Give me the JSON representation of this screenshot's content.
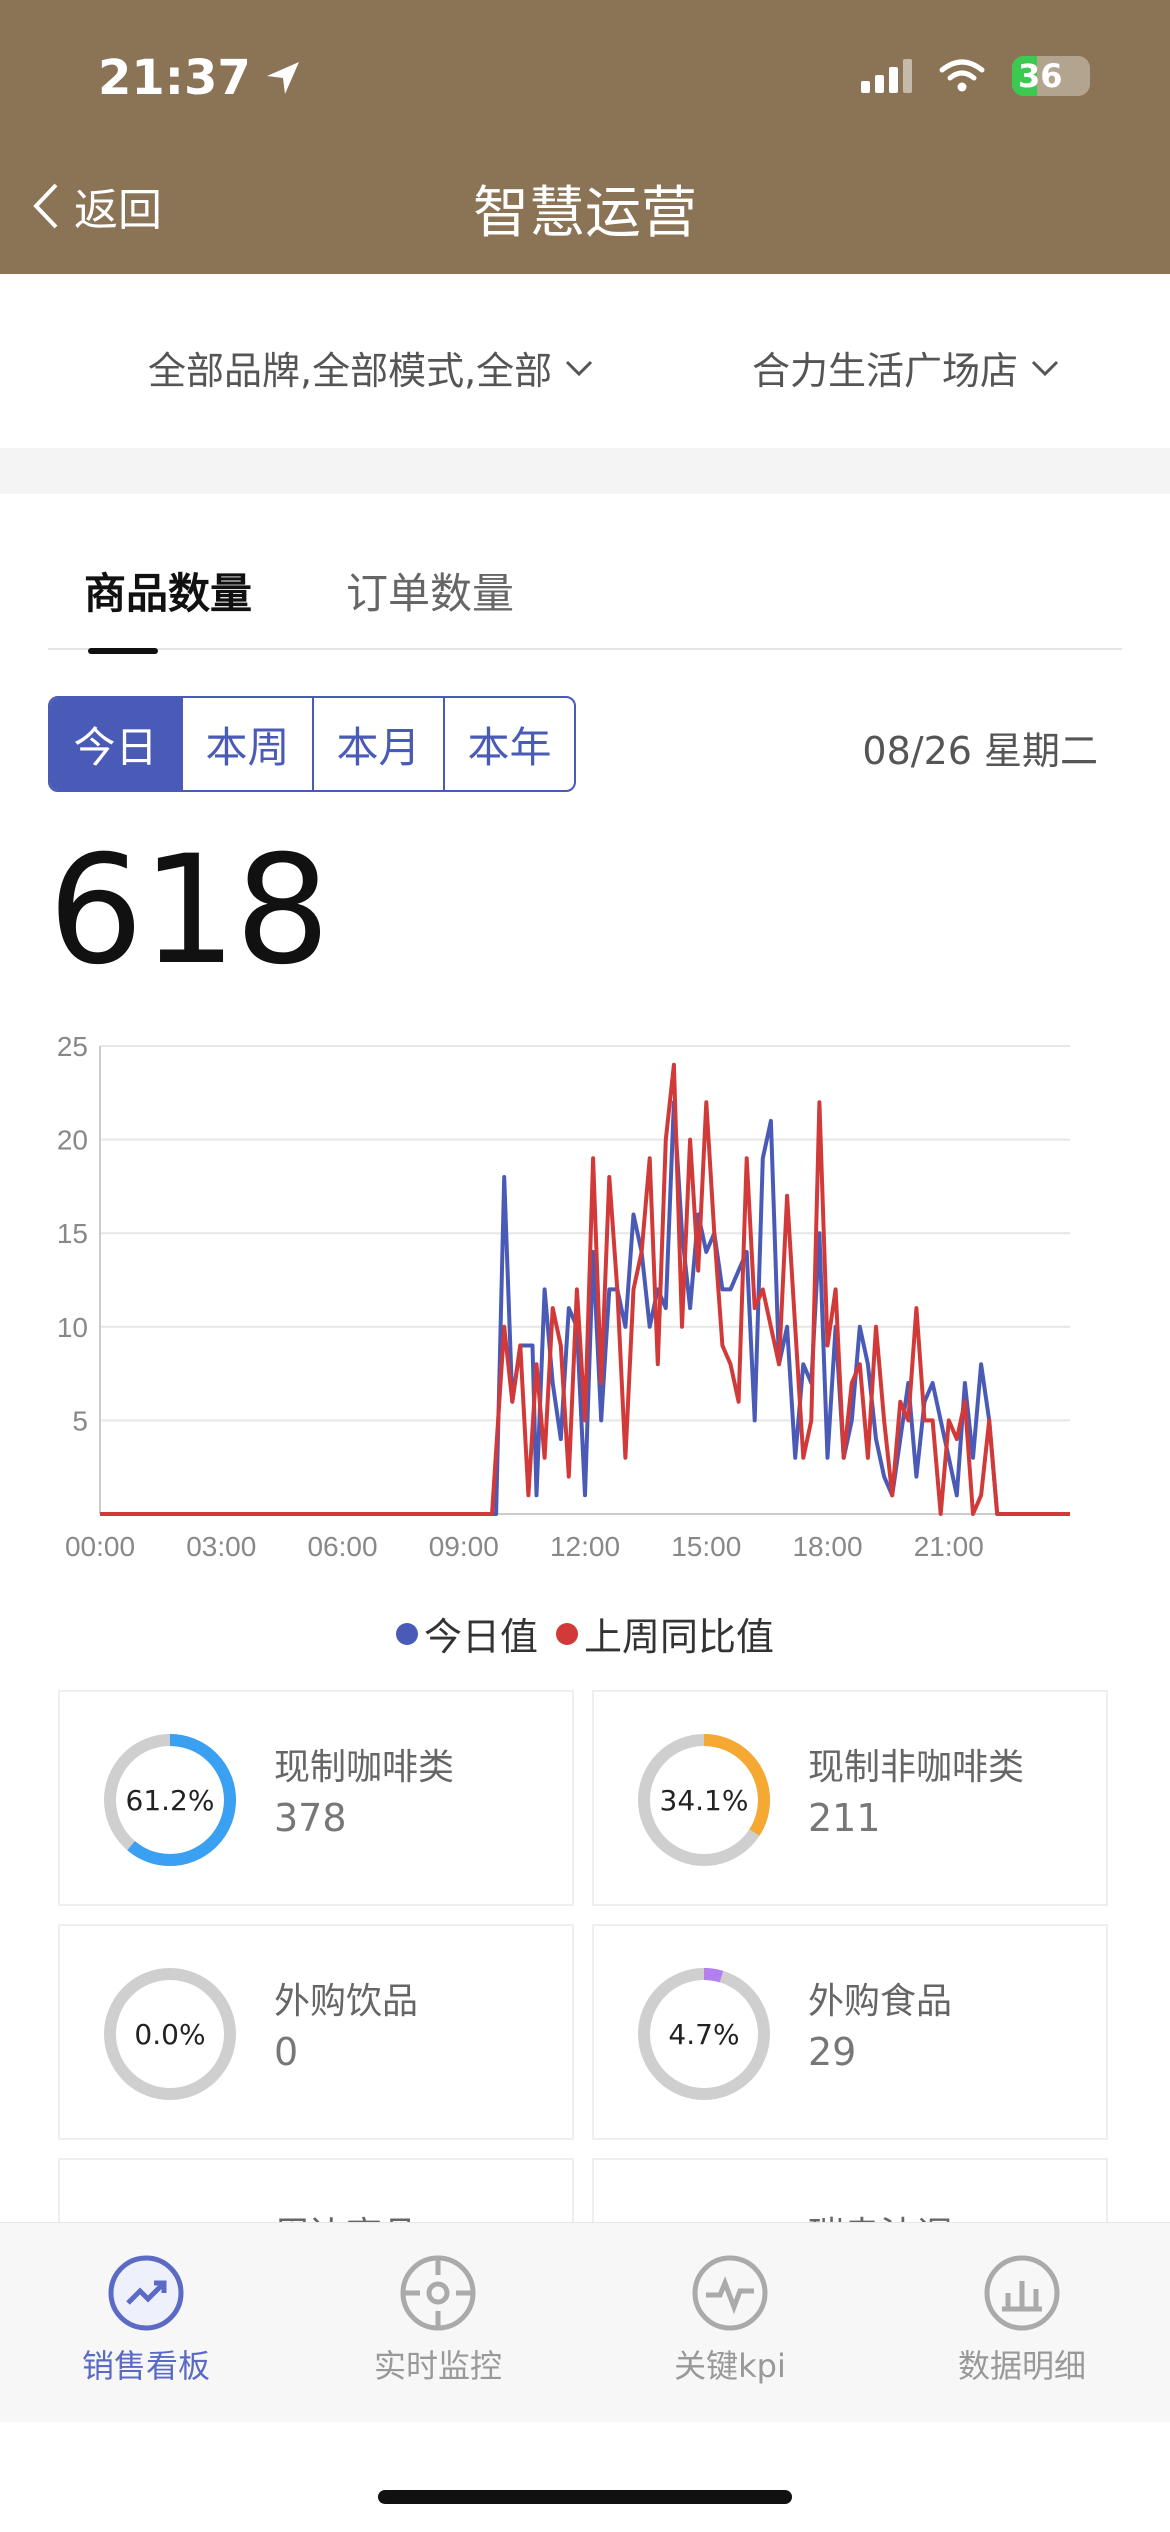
{
  "status": {
    "time": "21:37",
    "battery": "36"
  },
  "nav": {
    "back_label": "返回",
    "title": "智慧运营"
  },
  "filters": {
    "brand": "全部品牌,全部模式,全部",
    "store": "合力生活广场店"
  },
  "tabs": [
    {
      "label": "商品数量",
      "active": true
    },
    {
      "label": "订单数量",
      "active": false
    }
  ],
  "period": {
    "options": [
      "今日",
      "本周",
      "本月",
      "本年"
    ],
    "selected": "今日"
  },
  "date": "08/26 星期二",
  "total": "618",
  "chart_data": {
    "type": "line",
    "y_ticks": [
      5,
      10,
      15,
      20,
      25
    ],
    "ylim": [
      0,
      25
    ],
    "x_ticks": [
      "00:00",
      "03:00",
      "06:00",
      "09:00",
      "12:00",
      "15:00",
      "18:00",
      "21:00"
    ],
    "x_range_hours": [
      0,
      24
    ],
    "series": [
      {
        "name": "今日值",
        "color": "#4a5bb7",
        "points": [
          [
            0,
            0
          ],
          [
            9.8,
            0
          ],
          [
            10.0,
            18
          ],
          [
            10.2,
            6
          ],
          [
            10.4,
            9
          ],
          [
            10.7,
            9
          ],
          [
            10.8,
            1
          ],
          [
            11.0,
            12
          ],
          [
            11.2,
            7
          ],
          [
            11.4,
            4
          ],
          [
            11.6,
            11
          ],
          [
            11.8,
            10
          ],
          [
            12.0,
            1
          ],
          [
            12.2,
            14
          ],
          [
            12.4,
            5
          ],
          [
            12.6,
            12
          ],
          [
            12.8,
            12
          ],
          [
            13.0,
            10
          ],
          [
            13.2,
            16
          ],
          [
            13.4,
            14
          ],
          [
            13.6,
            10
          ],
          [
            13.8,
            12
          ],
          [
            14.0,
            11
          ],
          [
            14.2,
            22
          ],
          [
            14.4,
            15
          ],
          [
            14.6,
            11
          ],
          [
            14.8,
            16
          ],
          [
            15.0,
            14
          ],
          [
            15.2,
            15
          ],
          [
            15.4,
            12
          ],
          [
            15.6,
            12
          ],
          [
            15.8,
            13
          ],
          [
            16.0,
            14
          ],
          [
            16.2,
            5
          ],
          [
            16.4,
            19
          ],
          [
            16.6,
            21
          ],
          [
            16.8,
            8
          ],
          [
            17.0,
            10
          ],
          [
            17.2,
            3
          ],
          [
            17.4,
            8
          ],
          [
            17.6,
            7
          ],
          [
            17.8,
            15
          ],
          [
            18.0,
            3
          ],
          [
            18.2,
            10
          ],
          [
            18.4,
            3
          ],
          [
            18.6,
            5
          ],
          [
            18.8,
            10
          ],
          [
            19.0,
            8
          ],
          [
            19.2,
            4
          ],
          [
            19.4,
            2
          ],
          [
            19.6,
            1
          ],
          [
            19.8,
            4
          ],
          [
            20.0,
            7
          ],
          [
            20.2,
            2
          ],
          [
            20.4,
            6
          ],
          [
            20.6,
            7
          ],
          [
            20.8,
            5
          ],
          [
            21.0,
            3
          ],
          [
            21.2,
            1
          ],
          [
            21.4,
            7
          ],
          [
            21.6,
            3
          ],
          [
            21.8,
            8
          ],
          [
            22.0,
            5
          ],
          [
            22.2,
            0
          ],
          [
            24,
            0
          ]
        ]
      },
      {
        "name": "上周同比值",
        "color": "#d23a3a",
        "points": [
          [
            0,
            0
          ],
          [
            9.7,
            0
          ],
          [
            10.0,
            10
          ],
          [
            10.2,
            6
          ],
          [
            10.4,
            9
          ],
          [
            10.6,
            1
          ],
          [
            10.8,
            8
          ],
          [
            11.0,
            3
          ],
          [
            11.2,
            11
          ],
          [
            11.4,
            9
          ],
          [
            11.6,
            2
          ],
          [
            11.8,
            12
          ],
          [
            12.0,
            5
          ],
          [
            12.2,
            19
          ],
          [
            12.4,
            7
          ],
          [
            12.6,
            18
          ],
          [
            12.8,
            12
          ],
          [
            13.0,
            3
          ],
          [
            13.2,
            12
          ],
          [
            13.4,
            14
          ],
          [
            13.6,
            19
          ],
          [
            13.8,
            8
          ],
          [
            14.0,
            20
          ],
          [
            14.2,
            24
          ],
          [
            14.4,
            10
          ],
          [
            14.6,
            20
          ],
          [
            14.8,
            13
          ],
          [
            15.0,
            22
          ],
          [
            15.2,
            15
          ],
          [
            15.4,
            9
          ],
          [
            15.6,
            8
          ],
          [
            15.8,
            6
          ],
          [
            16.0,
            19
          ],
          [
            16.2,
            11
          ],
          [
            16.4,
            12
          ],
          [
            16.6,
            10
          ],
          [
            16.8,
            8
          ],
          [
            17.0,
            17
          ],
          [
            17.2,
            10
          ],
          [
            17.4,
            3
          ],
          [
            17.6,
            5
          ],
          [
            17.8,
            22
          ],
          [
            18.0,
            9
          ],
          [
            18.2,
            12
          ],
          [
            18.4,
            3
          ],
          [
            18.6,
            7
          ],
          [
            18.8,
            8
          ],
          [
            19.0,
            3
          ],
          [
            19.2,
            10
          ],
          [
            19.4,
            5
          ],
          [
            19.6,
            1
          ],
          [
            19.8,
            6
          ],
          [
            20.0,
            5
          ],
          [
            20.2,
            11
          ],
          [
            20.4,
            5
          ],
          [
            20.6,
            5
          ],
          [
            20.8,
            0
          ],
          [
            21.0,
            5
          ],
          [
            21.2,
            4
          ],
          [
            21.4,
            6
          ],
          [
            21.6,
            0
          ],
          [
            21.8,
            1
          ],
          [
            22.0,
            5
          ],
          [
            22.2,
            0
          ],
          [
            24,
            0
          ]
        ]
      }
    ]
  },
  "legend": [
    "今日值",
    "上周同比值"
  ],
  "categories": [
    {
      "name": "现制咖啡类",
      "value": "378",
      "pct": "61.2%",
      "fraction": 0.612,
      "color": "#3aa0f2"
    },
    {
      "name": "现制非咖啡类",
      "value": "211",
      "pct": "34.1%",
      "fraction": 0.341,
      "color": "#f5a832"
    },
    {
      "name": "外购饮品",
      "value": "0",
      "pct": "0.0%",
      "fraction": 0.0,
      "color": "#c9c9c9"
    },
    {
      "name": "外购食品",
      "value": "29",
      "pct": "4.7%",
      "fraction": 0.047,
      "color": "#b37ef0"
    }
  ],
  "partial_categories": [
    "周边商品",
    "瑞幸法调"
  ],
  "tabbar": [
    {
      "label": "销售看板",
      "icon": "trend-icon",
      "active": true
    },
    {
      "label": "实时监控",
      "icon": "target-icon",
      "active": false
    },
    {
      "label": "关键kpi",
      "icon": "pulse-icon",
      "active": false
    },
    {
      "label": "数据明细",
      "icon": "bar-chart-icon",
      "active": false
    }
  ]
}
